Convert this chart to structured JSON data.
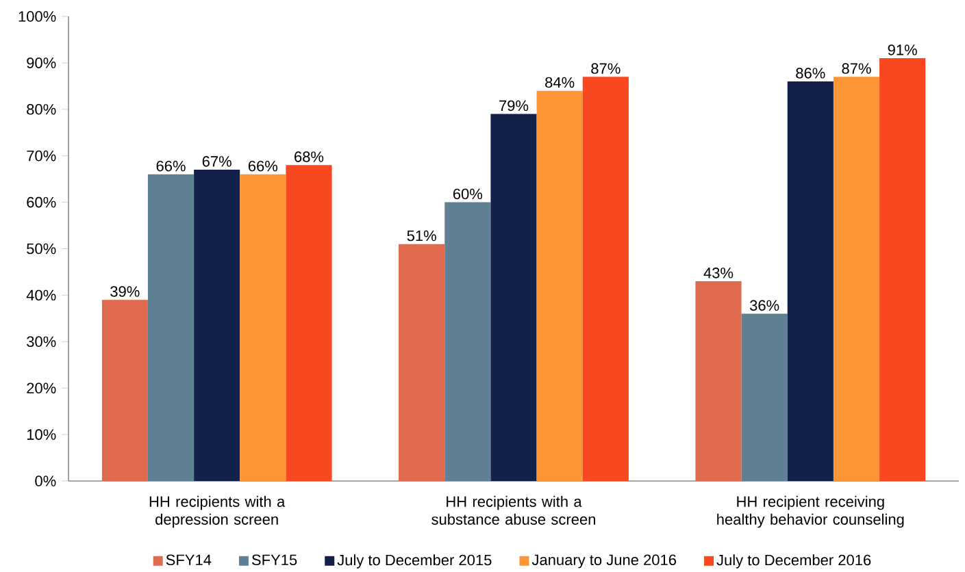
{
  "chart_data": {
    "type": "bar",
    "categories": [
      "HH recipients with a depression screen",
      "HH recipients with a substance abuse screen",
      "HH recipient receiving healthy behavior counseling"
    ],
    "series": [
      {
        "name": "SFY14",
        "color": "#e06a4e",
        "values": [
          39,
          51,
          43
        ],
        "value_labels": [
          "39%",
          "51%",
          "43%"
        ]
      },
      {
        "name": "SFY15",
        "color": "#5f8193",
        "values": [
          66,
          60,
          36
        ],
        "value_labels": [
          "66%",
          "60%",
          "36%"
        ]
      },
      {
        "name": "July to December 2015",
        "color": "#13214a",
        "values": [
          67,
          79,
          86
        ],
        "value_labels": [
          "67%",
          "79%",
          "86%"
        ]
      },
      {
        "name": "January to June 2016",
        "color": "#fd9535",
        "values": [
          66,
          84,
          87
        ],
        "value_labels": [
          "66%",
          "84%",
          "87%"
        ]
      },
      {
        "name": "July to December 2016",
        "color": "#f9471f",
        "values": [
          68,
          87,
          91
        ],
        "value_labels": [
          "68%",
          "87%",
          "91%"
        ]
      }
    ],
    "ylim": [
      0,
      100
    ],
    "yticks": [
      {
        "value": 0,
        "label": "0%"
      },
      {
        "value": 10,
        "label": "10%"
      },
      {
        "value": 20,
        "label": "20%"
      },
      {
        "value": 30,
        "label": "30%"
      },
      {
        "value": 40,
        "label": "40%"
      },
      {
        "value": 50,
        "label": "50%"
      },
      {
        "value": 60,
        "label": "60%"
      },
      {
        "value": 70,
        "label": "70%"
      },
      {
        "value": 80,
        "label": "80%"
      },
      {
        "value": 90,
        "label": "90%"
      },
      {
        "value": 100,
        "label": "100%"
      }
    ],
    "grid": false,
    "legend": "bottom"
  }
}
